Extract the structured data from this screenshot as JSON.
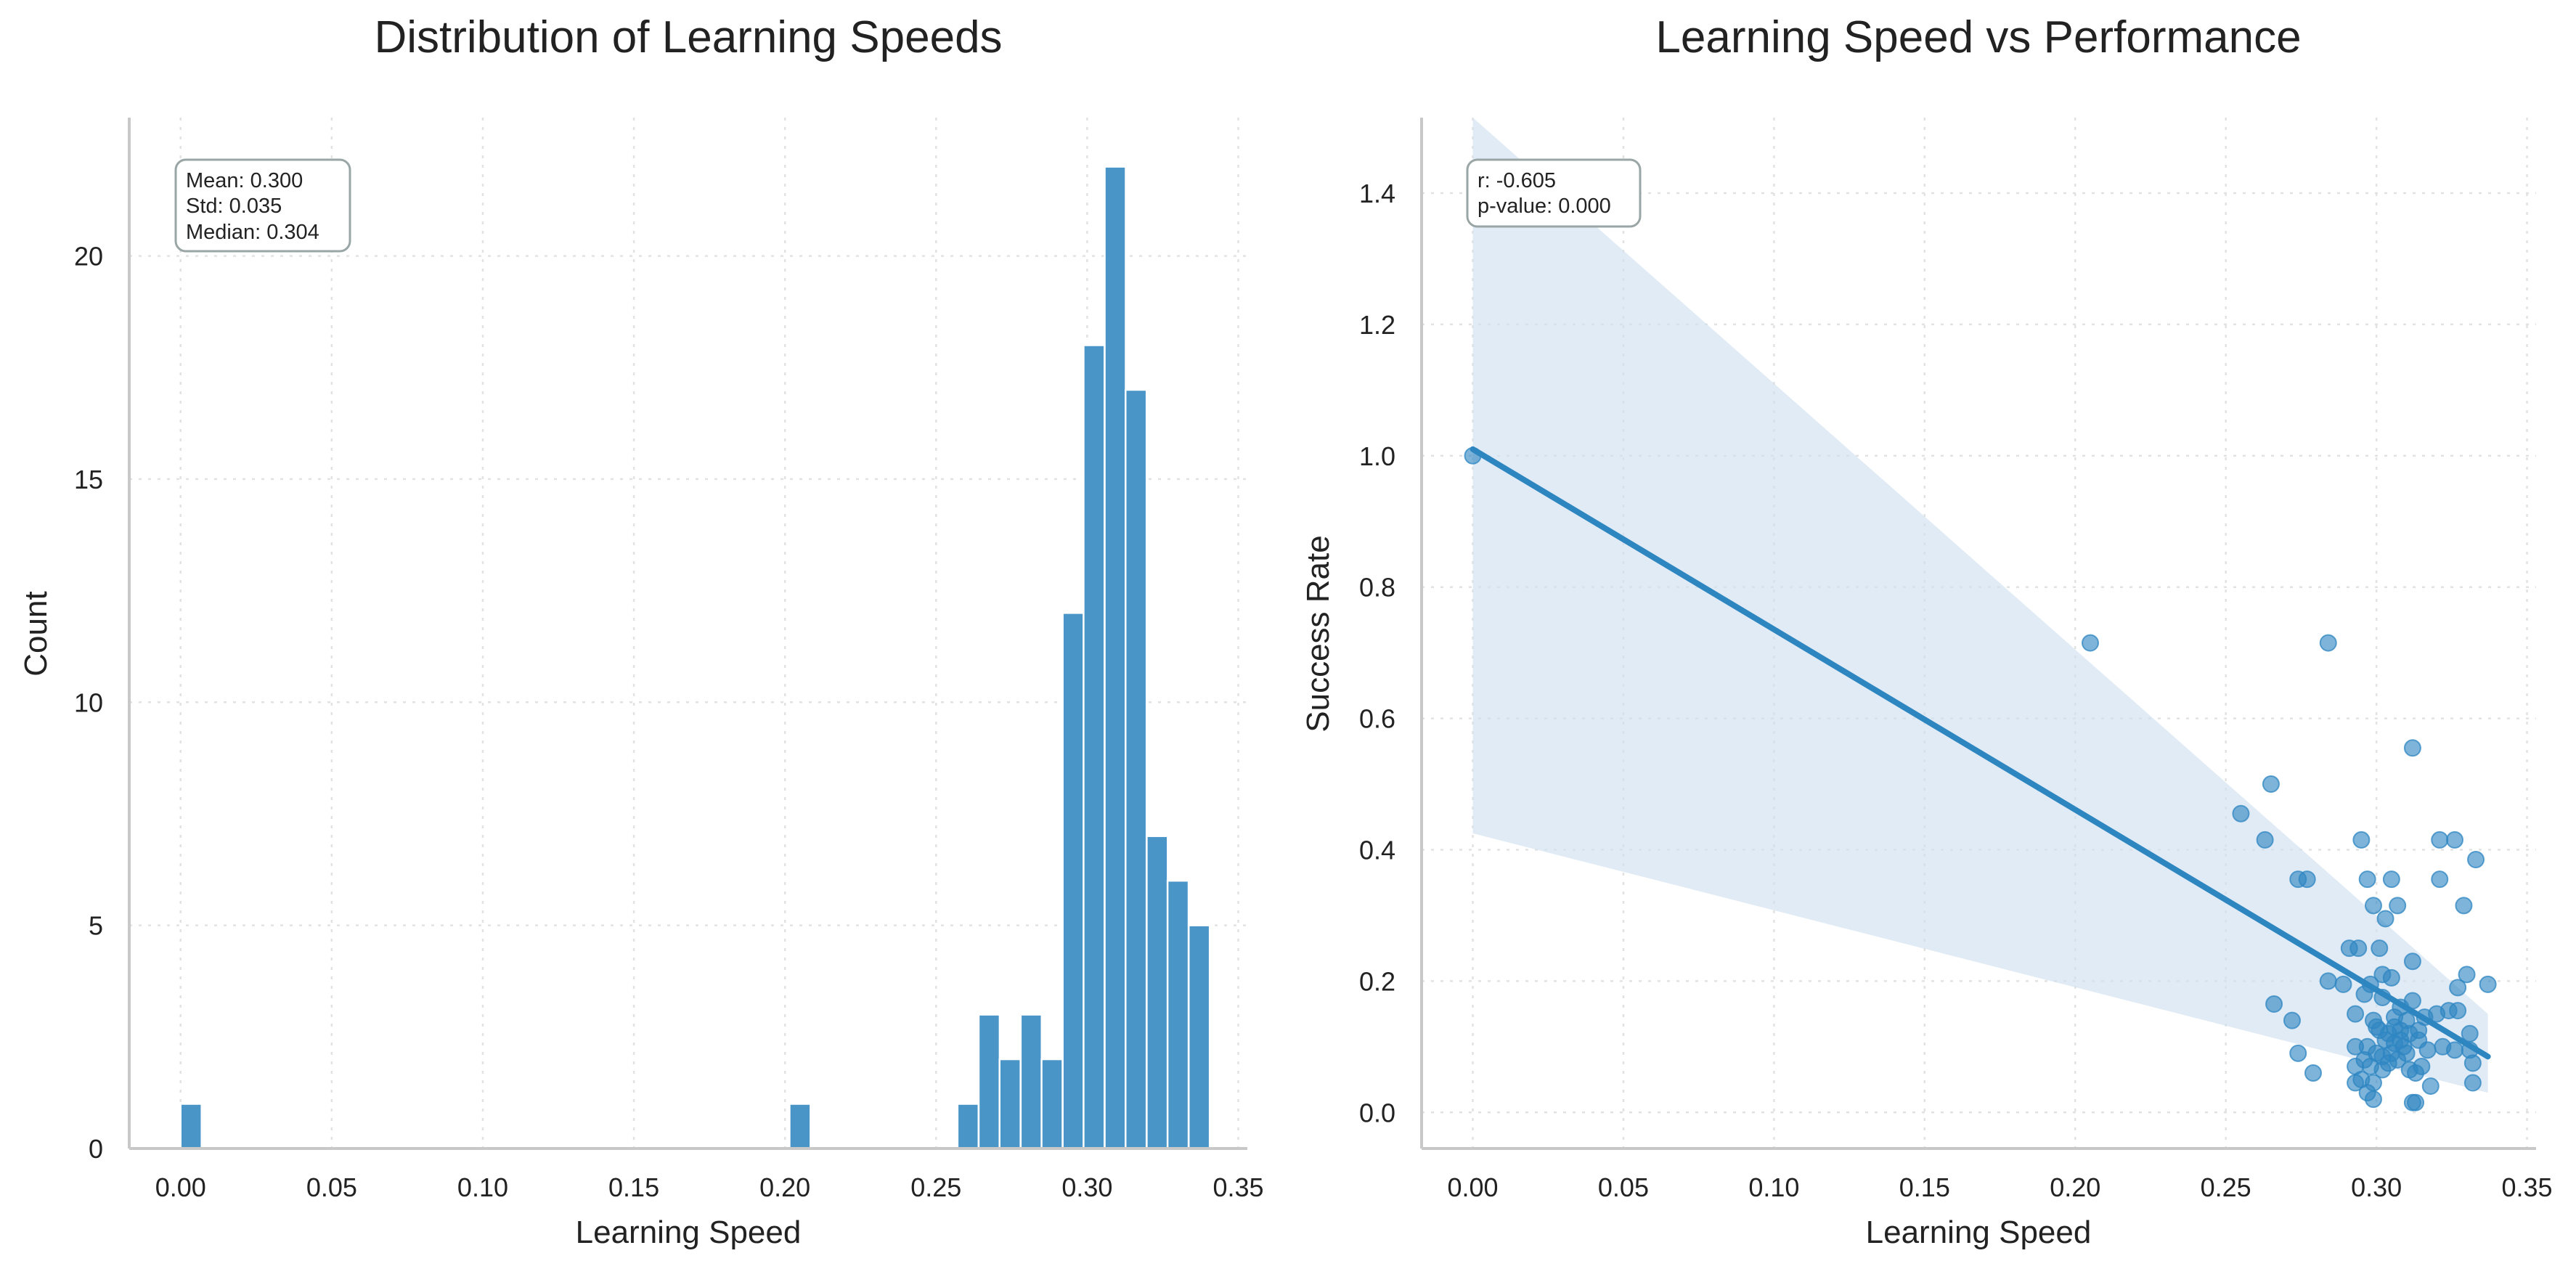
{
  "chart_data": [
    {
      "type": "bar",
      "title": "Distribution of Learning Speeds",
      "xlabel": "Learning Speed",
      "ylabel": "Count",
      "xlim": [
        -0.017,
        0.353
      ],
      "ylim": [
        0,
        23.1
      ],
      "xticks": [
        "0.00",
        "0.05",
        "0.10",
        "0.15",
        "0.20",
        "0.25",
        "0.30",
        "0.35"
      ],
      "yticks": [
        "0",
        "5",
        "10",
        "15",
        "20"
      ],
      "grid": true,
      "bar_color": "#4a95c8",
      "bin_width": 0.00695,
      "bins": [
        {
          "x0": 0.0,
          "count": 1
        },
        {
          "x0": 0.2015,
          "count": 1
        },
        {
          "x0": 0.2571,
          "count": 1
        },
        {
          "x0": 0.2641,
          "count": 3
        },
        {
          "x0": 0.271,
          "count": 2
        },
        {
          "x0": 0.278,
          "count": 3
        },
        {
          "x0": 0.2849,
          "count": 2
        },
        {
          "x0": 0.2919,
          "count": 12
        },
        {
          "x0": 0.2988,
          "count": 18
        },
        {
          "x0": 0.3058,
          "count": 22
        },
        {
          "x0": 0.3127,
          "count": 17
        },
        {
          "x0": 0.3197,
          "count": 7
        },
        {
          "x0": 0.3266,
          "count": 6
        },
        {
          "x0": 0.3336,
          "count": 5
        }
      ],
      "annotation": [
        "Mean: 0.300",
        "Std: 0.035",
        "Median: 0.304"
      ]
    },
    {
      "type": "scatter",
      "title": "Learning Speed vs Performance",
      "xlabel": "Learning Speed",
      "ylabel": "Success Rate",
      "xlim": [
        -0.017,
        0.353
      ],
      "ylim": [
        -0.055,
        1.515
      ],
      "xticks": [
        "0.00",
        "0.05",
        "0.10",
        "0.15",
        "0.20",
        "0.25",
        "0.30",
        "0.35"
      ],
      "yticks": [
        "0.0",
        "0.2",
        "0.4",
        "0.6",
        "0.8",
        "1.0",
        "1.2",
        "1.4"
      ],
      "grid": true,
      "point_color": "#2e86c1",
      "regression_line": {
        "x": [
          0.0,
          0.337
        ],
        "y": [
          1.01,
          0.085
        ]
      },
      "confidence_band": {
        "x": [
          0.0,
          0.337
        ],
        "upper": [
          1.52,
          0.15
        ],
        "lower": [
          0.425,
          0.03
        ]
      },
      "points": [
        [
          0.0,
          1.0
        ],
        [
          0.205,
          0.715
        ],
        [
          0.284,
          0.715
        ],
        [
          0.312,
          0.555
        ],
        [
          0.255,
          0.455
        ],
        [
          0.265,
          0.5
        ],
        [
          0.263,
          0.415
        ],
        [
          0.295,
          0.415
        ],
        [
          0.321,
          0.415
        ],
        [
          0.326,
          0.415
        ],
        [
          0.333,
          0.385
        ],
        [
          0.274,
          0.355
        ],
        [
          0.277,
          0.355
        ],
        [
          0.297,
          0.355
        ],
        [
          0.305,
          0.355
        ],
        [
          0.321,
          0.355
        ],
        [
          0.299,
          0.315
        ],
        [
          0.307,
          0.315
        ],
        [
          0.329,
          0.315
        ],
        [
          0.303,
          0.295
        ],
        [
          0.291,
          0.25
        ],
        [
          0.294,
          0.25
        ],
        [
          0.301,
          0.25
        ],
        [
          0.312,
          0.23
        ],
        [
          0.284,
          0.2
        ],
        [
          0.289,
          0.195
        ],
        [
          0.298,
          0.195
        ],
        [
          0.302,
          0.21
        ],
        [
          0.305,
          0.205
        ],
        [
          0.33,
          0.21
        ],
        [
          0.337,
          0.195
        ],
        [
          0.327,
          0.19
        ],
        [
          0.296,
          0.18
        ],
        [
          0.302,
          0.175
        ],
        [
          0.308,
          0.16
        ],
        [
          0.312,
          0.17
        ],
        [
          0.266,
          0.165
        ],
        [
          0.272,
          0.14
        ],
        [
          0.293,
          0.15
        ],
        [
          0.299,
          0.14
        ],
        [
          0.306,
          0.145
        ],
        [
          0.31,
          0.14
        ],
        [
          0.316,
          0.145
        ],
        [
          0.32,
          0.15
        ],
        [
          0.324,
          0.155
        ],
        [
          0.327,
          0.155
        ],
        [
          0.331,
          0.12
        ],
        [
          0.301,
          0.125
        ],
        [
          0.304,
          0.12
        ],
        [
          0.308,
          0.125
        ],
        [
          0.311,
          0.12
        ],
        [
          0.314,
          0.11
        ],
        [
          0.303,
          0.11
        ],
        [
          0.306,
          0.105
        ],
        [
          0.309,
          0.1
        ],
        [
          0.297,
          0.1
        ],
        [
          0.293,
          0.1
        ],
        [
          0.3,
          0.09
        ],
        [
          0.305,
          0.09
        ],
        [
          0.31,
          0.09
        ],
        [
          0.317,
          0.095
        ],
        [
          0.322,
          0.1
        ],
        [
          0.326,
          0.095
        ],
        [
          0.331,
          0.095
        ],
        [
          0.274,
          0.09
        ],
        [
          0.302,
          0.085
        ],
        [
          0.307,
          0.08
        ],
        [
          0.296,
          0.08
        ],
        [
          0.304,
          0.075
        ],
        [
          0.298,
          0.07
        ],
        [
          0.293,
          0.07
        ],
        [
          0.311,
          0.065
        ],
        [
          0.313,
          0.06
        ],
        [
          0.315,
          0.07
        ],
        [
          0.302,
          0.065
        ],
        [
          0.279,
          0.06
        ],
        [
          0.332,
          0.075
        ],
        [
          0.295,
          0.05
        ],
        [
          0.299,
          0.045
        ],
        [
          0.293,
          0.045
        ],
        [
          0.318,
          0.04
        ],
        [
          0.332,
          0.045
        ],
        [
          0.297,
          0.03
        ],
        [
          0.299,
          0.02
        ],
        [
          0.312,
          0.015
        ],
        [
          0.313,
          0.015
        ],
        [
          0.308,
          0.11
        ],
        [
          0.306,
          0.13
        ],
        [
          0.3,
          0.13
        ],
        [
          0.314,
          0.125
        ]
      ],
      "annotation": [
        "r: -0.605",
        "p-value: 0.000"
      ]
    }
  ]
}
